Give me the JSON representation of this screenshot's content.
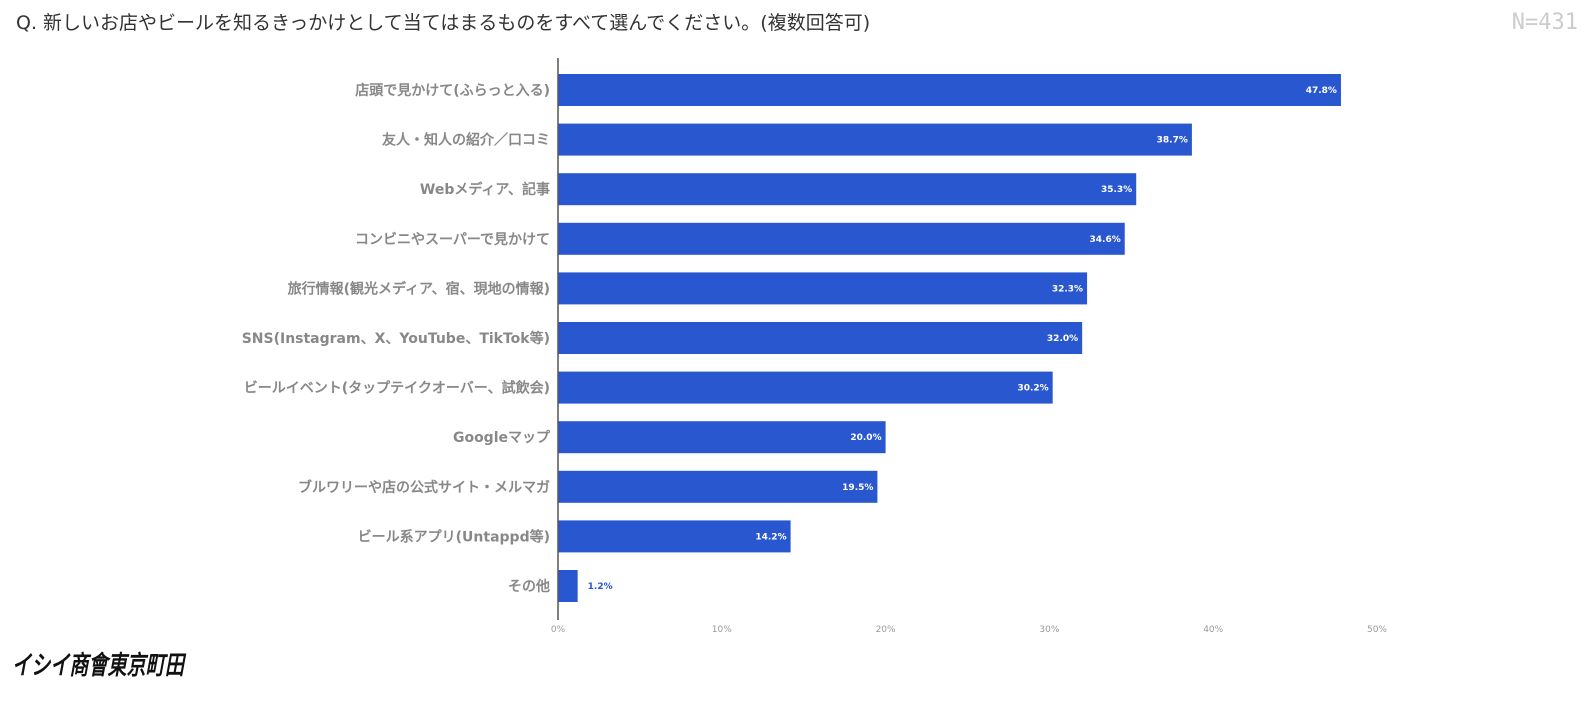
{
  "header": {
    "question": "Q. 新しいお店やビールを知るきっかけとして当てはまるものをすべて選んでください。(複数回答可)",
    "n": "N=431"
  },
  "logo": {
    "text": "イシイ商會東京町田"
  },
  "colors": {
    "bar": "#2857d0",
    "axis": "#555555",
    "label": "#888888",
    "value_outside": "#2857d0"
  },
  "chart_data": {
    "type": "bar",
    "orientation": "horizontal",
    "categories": [
      "店頭で見かけて(ふらっと入る)",
      "友人・知人の紹介／口コミ",
      "Webメディア、記事",
      "コンビニやスーパーで見かけて",
      "旅行情報(観光メディア、宿、現地の情報)",
      "SNS(Instagram、X、YouTube、TikTok等)",
      "ビールイベント(タップテイクオーバー、試飲会)",
      "Googleマップ",
      "ブルワリーや店の公式サイト・メルマガ",
      "ビール系アプリ(Untappd等)",
      "その他"
    ],
    "values": [
      47.8,
      38.7,
      35.3,
      34.6,
      32.3,
      32.0,
      30.2,
      20.0,
      19.5,
      14.2,
      1.2
    ],
    "value_labels": [
      "47.8%",
      "38.7%",
      "35.3%",
      "34.6%",
      "32.3%",
      "32.0%",
      "30.2%",
      "20.0%",
      "19.5%",
      "14.2%",
      "1.2%"
    ],
    "xlim": [
      0,
      50
    ],
    "xticks": [
      0,
      10,
      20,
      30,
      40,
      50
    ],
    "xtick_labels": [
      "0%",
      "10%",
      "20%",
      "30%",
      "40%",
      "50%"
    ],
    "grid": false,
    "legend": "none"
  }
}
